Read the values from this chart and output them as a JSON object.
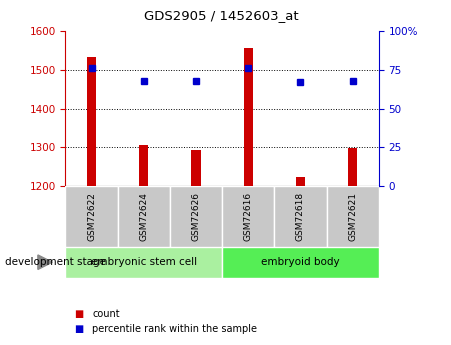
{
  "title": "GDS2905 / 1452603_at",
  "samples": [
    "GSM72622",
    "GSM72624",
    "GSM72626",
    "GSM72616",
    "GSM72618",
    "GSM72621"
  ],
  "bar_values": [
    1533,
    1307,
    1293,
    1557,
    1225,
    1298
  ],
  "bar_bottom": 1200,
  "percentile_values": [
    76,
    68,
    68,
    76,
    67,
    68
  ],
  "ylim_left": [
    1200,
    1600
  ],
  "ylim_right": [
    0,
    100
  ],
  "yticks_left": [
    1200,
    1300,
    1400,
    1500,
    1600
  ],
  "yticks_right": [
    0,
    25,
    50,
    75,
    100
  ],
  "yticklabels_right": [
    "0",
    "25",
    "50",
    "75",
    "100%"
  ],
  "groups": [
    {
      "label": "embryonic stem cell",
      "start": 0,
      "end": 3,
      "color": "#aaf0a0"
    },
    {
      "label": "embryoid body",
      "start": 3,
      "end": 6,
      "color": "#55ee55"
    }
  ],
  "bar_color": "#cc0000",
  "marker_color": "#0000cc",
  "axis_left_color": "#cc0000",
  "axis_right_color": "#0000cc",
  "grid_color": "#000000",
  "legend_items": [
    {
      "label": "count",
      "color": "#cc0000"
    },
    {
      "label": "percentile rank within the sample",
      "color": "#0000cc"
    }
  ],
  "dev_stage_label": "development stage",
  "bar_width": 0.18
}
